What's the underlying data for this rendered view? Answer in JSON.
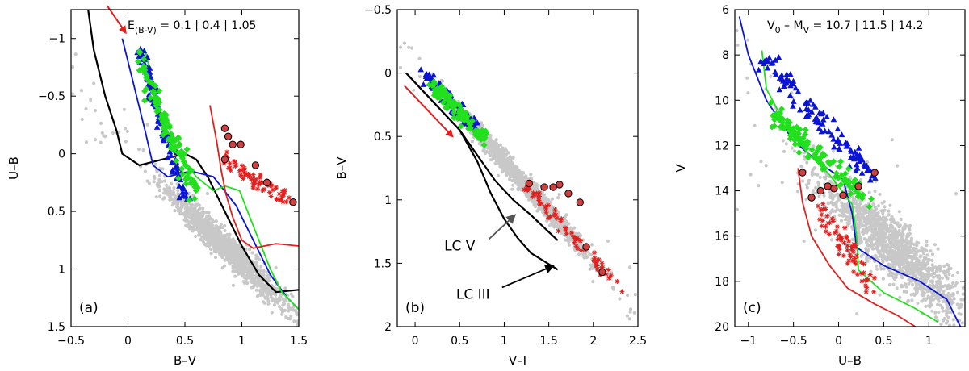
{
  "chart_data": [
    {
      "type": "scatter",
      "panel_label": "(a)",
      "xlabel": "B–V",
      "ylabel": "U–B",
      "xlim": [
        -0.5,
        1.5
      ],
      "ylim": [
        1.5,
        -1.25
      ],
      "xticks": [
        -0.5,
        0,
        0.5,
        1,
        1.5
      ],
      "xtick_labels": [
        "−0.5",
        "0",
        "0.5",
        "1",
        "1.5"
      ],
      "yticks": [
        -1,
        -0.5,
        0,
        0.5,
        1,
        1.5
      ],
      "ytick_labels": [
        "−1",
        "−0.5",
        "0",
        "0.5",
        "1",
        "1.5"
      ],
      "annotation": {
        "prefix": "E",
        "sub": "(B-V)",
        "text": " = 0.1 | 0.4 | 1.05"
      },
      "field": {
        "color": "#c8c8c8",
        "center": [
          0.85,
          0.8
        ],
        "slope": 0.95,
        "spread": 0.12
      },
      "groups": [
        {
          "name": "blue-triangles",
          "marker": "triangle",
          "color": "#0a14d2",
          "x_range": [
            0.1,
            0.55
          ],
          "line": [
            [
              0.1,
              -0.9
            ],
            [
              0.5,
              0.35
            ]
          ],
          "spread": 0.08
        },
        {
          "name": "green-diamonds",
          "marker": "diamond",
          "color": "#22e01e",
          "x_range": [
            0.1,
            0.65
          ],
          "line": [
            [
              0.1,
              -0.8
            ],
            [
              0.6,
              0.35
            ]
          ],
          "spread": 0.1
        },
        {
          "name": "red-crosses",
          "marker": "cross",
          "color": "#e0201e",
          "x_range": [
            0.85,
            1.45
          ],
          "line": [
            [
              0.85,
              0.05
            ],
            [
              1.4,
              0.4
            ]
          ],
          "spread": 0.07
        },
        {
          "name": "black-circles",
          "marker": "circle",
          "color": "#d04040",
          "points": [
            [
              0.85,
              -0.22
            ],
            [
              0.88,
              -0.15
            ],
            [
              0.92,
              -0.08
            ],
            [
              0.99,
              -0.08
            ],
            [
              0.85,
              0.05
            ],
            [
              1.12,
              0.1
            ],
            [
              1.22,
              0.25
            ],
            [
              1.45,
              0.42
            ]
          ]
        }
      ],
      "lines": [
        {
          "name": "black-sequence",
          "color": "#000000",
          "points": [
            [
              -0.35,
              -1.25
            ],
            [
              -0.3,
              -0.9
            ],
            [
              -0.2,
              -0.5
            ],
            [
              -0.1,
              -0.2
            ],
            [
              -0.05,
              0.0
            ],
            [
              0.1,
              0.1
            ],
            [
              0.3,
              0.05
            ],
            [
              0.5,
              0.0
            ],
            [
              0.6,
              0.05
            ],
            [
              0.7,
              0.2
            ],
            [
              0.85,
              0.5
            ],
            [
              1.0,
              0.8
            ],
            [
              1.15,
              1.05
            ],
            [
              1.3,
              1.2
            ],
            [
              1.5,
              1.18
            ]
          ]
        },
        {
          "name": "blue-sequence",
          "color": "#0a14d2",
          "points": [
            [
              -0.05,
              -1.0
            ],
            [
              0.05,
              -0.6
            ],
            [
              0.15,
              -0.2
            ],
            [
              0.22,
              0.1
            ],
            [
              0.35,
              0.2
            ],
            [
              0.55,
              0.15
            ],
            [
              0.75,
              0.2
            ],
            [
              0.95,
              0.45
            ],
            [
              1.1,
              0.75
            ],
            [
              1.25,
              1.05
            ],
            [
              1.4,
              1.25
            ],
            [
              1.5,
              1.35
            ]
          ]
        },
        {
          "name": "green-sequence",
          "color": "#22e01e",
          "points": [
            [
              0.15,
              -0.9
            ],
            [
              0.22,
              -0.6
            ],
            [
              0.32,
              -0.25
            ],
            [
              0.45,
              0.0
            ],
            [
              0.6,
              0.2
            ],
            [
              0.75,
              0.32
            ],
            [
              0.85,
              0.28
            ],
            [
              0.98,
              0.32
            ],
            [
              1.05,
              0.5
            ],
            [
              1.15,
              0.75
            ],
            [
              1.25,
              1.0
            ],
            [
              1.35,
              1.2
            ],
            [
              1.5,
              1.35
            ]
          ]
        },
        {
          "name": "red-sequence",
          "color": "#e0201e",
          "points": [
            [
              0.72,
              -0.42
            ],
            [
              0.78,
              -0.1
            ],
            [
              0.82,
              0.15
            ],
            [
              0.86,
              0.35
            ],
            [
              0.92,
              0.55
            ],
            [
              1.0,
              0.75
            ],
            [
              1.1,
              0.82
            ],
            [
              1.3,
              0.78
            ],
            [
              1.5,
              0.8
            ]
          ]
        }
      ],
      "arrow": {
        "color": "#e0201e",
        "from": [
          -0.18,
          -1.28
        ],
        "to": [
          -0.02,
          -1.05
        ]
      }
    },
    {
      "type": "scatter",
      "panel_label": "(b)",
      "xlabel": "V–I",
      "ylabel": "B–V",
      "xlim": [
        -0.2,
        2.5
      ],
      "ylim": [
        2.0,
        -0.5
      ],
      "xticks": [
        0,
        0.5,
        1,
        1.5,
        2,
        2.5
      ],
      "xtick_labels": [
        "0",
        "0.5",
        "1",
        "1.5",
        "2",
        "2.5"
      ],
      "yticks": [
        -0.5,
        0,
        0.5,
        1,
        1.5,
        2
      ],
      "ytick_labels": [
        "−0.5",
        "0",
        "0.5",
        "1",
        "1.5",
        "2"
      ],
      "field": {
        "color": "#c8c8c8",
        "center": [
          1.2,
          0.85
        ],
        "slope": 0.78,
        "spread": 0.08
      },
      "groups": [
        {
          "name": "blue-triangles",
          "marker": "triangle",
          "color": "#0a14d2",
          "x_range": [
            0.1,
            0.7
          ],
          "line": [
            [
              0.1,
              0.0
            ],
            [
              0.7,
              0.45
            ]
          ],
          "spread": 0.05
        },
        {
          "name": "green-diamonds",
          "marker": "diamond",
          "color": "#22e01e",
          "x_range": [
            0.2,
            0.85
          ],
          "line": [
            [
              0.2,
              0.1
            ],
            [
              0.8,
              0.55
            ]
          ],
          "spread": 0.06
        },
        {
          "name": "red-crosses",
          "marker": "cross",
          "color": "#e0201e",
          "x_range": [
            1.2,
            2.3
          ],
          "line": [
            [
              1.2,
              0.85
            ],
            [
              2.3,
              1.7
            ]
          ],
          "spread": 0.05
        },
        {
          "name": "black-circles",
          "marker": "circle",
          "color": "#d04040",
          "points": [
            [
              1.28,
              0.87
            ],
            [
              1.45,
              0.9
            ],
            [
              1.55,
              0.9
            ],
            [
              1.62,
              0.88
            ],
            [
              1.72,
              0.95
            ],
            [
              1.85,
              1.02
            ],
            [
              1.92,
              1.37
            ],
            [
              2.1,
              1.57
            ]
          ]
        }
      ],
      "lines": [
        {
          "name": "lc-v-sequence",
          "color": "#000000",
          "points": [
            [
              -0.1,
              0.0
            ],
            [
              0.1,
              0.15
            ],
            [
              0.3,
              0.3
            ],
            [
              0.5,
              0.45
            ],
            [
              0.7,
              0.65
            ],
            [
              0.9,
              0.85
            ],
            [
              1.1,
              1.0
            ],
            [
              1.3,
              1.12
            ],
            [
              1.45,
              1.22
            ],
            [
              1.6,
              1.32
            ]
          ]
        },
        {
          "name": "lc-iii-sequence",
          "color": "#000000",
          "points": [
            [
              -0.1,
              0.0
            ],
            [
              0.1,
              0.15
            ],
            [
              0.3,
              0.3
            ],
            [
              0.5,
              0.45
            ],
            [
              0.7,
              0.7
            ],
            [
              0.85,
              0.95
            ],
            [
              1.0,
              1.15
            ],
            [
              1.15,
              1.3
            ],
            [
              1.3,
              1.42
            ],
            [
              1.6,
              1.55
            ]
          ]
        }
      ],
      "arrow": {
        "color": "#e0201e",
        "from": [
          -0.12,
          0.1
        ],
        "to": [
          0.42,
          0.5
        ]
      },
      "labels": [
        {
          "text": "LC V",
          "at": [
            0.5,
            1.4
          ],
          "arrow_to": [
            1.12,
            1.12
          ],
          "arrow_color": "#555555"
        },
        {
          "text": "LC III",
          "at": [
            0.65,
            1.78
          ],
          "arrow_to": [
            1.55,
            1.52
          ],
          "arrow_color": "#000000"
        }
      ]
    },
    {
      "type": "scatter",
      "panel_label": "(c)",
      "xlabel": "U–B",
      "ylabel": "V",
      "xlim": [
        -1.15,
        1.4
      ],
      "ylim": [
        20,
        6
      ],
      "xticks": [
        -1,
        -0.5,
        0,
        0.5,
        1
      ],
      "xtick_labels": [
        "−1",
        "−0.5",
        "0",
        "0.5",
        "1"
      ],
      "yticks": [
        6,
        8,
        10,
        12,
        14,
        16,
        18,
        20
      ],
      "ytick_labels": [
        "6",
        "8",
        "10",
        "12",
        "14",
        "16",
        "18",
        "20"
      ],
      "annotation": {
        "prefix": "V",
        "sub": "0",
        "text": " – M",
        "sub2": "V",
        "text2": " = 10.7 | 11.5 | 14.2"
      },
      "field": {
        "color": "#c8c8c8",
        "center": [
          0.6,
          16.5
        ],
        "slope": 3.5,
        "spread": 1.3
      },
      "groups": [
        {
          "name": "blue-triangles",
          "marker": "triangle",
          "color": "#0a14d2",
          "x_range": [
            -0.85,
            0.4
          ],
          "line": [
            [
              -0.85,
              8.0
            ],
            [
              0.4,
              13.5
            ]
          ],
          "spread": 0.6
        },
        {
          "name": "green-diamonds",
          "marker": "diamond",
          "color": "#22e01e",
          "x_range": [
            -0.85,
            0.35
          ],
          "line": [
            [
              -0.75,
              10.5
            ],
            [
              0.35,
              14.5
            ]
          ],
          "spread": 0.5
        },
        {
          "name": "red-crosses",
          "marker": "cross",
          "color": "#e0201e",
          "x_range": [
            -0.3,
            0.35
          ],
          "line": [
            [
              -0.2,
              15.0
            ],
            [
              0.35,
              18.0
            ]
          ],
          "spread": 0.7
        },
        {
          "name": "black-circles",
          "marker": "circle",
          "color": "#d04040",
          "points": [
            [
              -0.4,
              13.2
            ],
            [
              -0.3,
              14.3
            ],
            [
              -0.2,
              14.0
            ],
            [
              -0.12,
              13.8
            ],
            [
              -0.05,
              13.9
            ],
            [
              0.05,
              14.2
            ],
            [
              0.22,
              13.8
            ],
            [
              0.4,
              13.2
            ]
          ]
        }
      ],
      "lines": [
        {
          "name": "blue-sequence",
          "color": "#0a14d2",
          "points": [
            [
              -1.1,
              6.3
            ],
            [
              -1.0,
              8.0
            ],
            [
              -0.8,
              10.0
            ],
            [
              -0.5,
              11.8
            ],
            [
              -0.2,
              12.8
            ],
            [
              0.05,
              13.5
            ],
            [
              0.15,
              15.0
            ],
            [
              0.2,
              16.5
            ],
            [
              0.5,
              17.3
            ],
            [
              0.9,
              18.0
            ],
            [
              1.2,
              18.8
            ],
            [
              1.35,
              20.0
            ]
          ]
        },
        {
          "name": "green-sequence",
          "color": "#22e01e",
          "points": [
            [
              -0.85,
              7.8
            ],
            [
              -0.8,
              9.5
            ],
            [
              -0.6,
              11.0
            ],
            [
              -0.35,
              12.3
            ],
            [
              -0.1,
              13.3
            ],
            [
              0.15,
              14.6
            ],
            [
              0.2,
              16.0
            ],
            [
              0.22,
              17.5
            ],
            [
              0.5,
              18.5
            ],
            [
              0.85,
              19.2
            ],
            [
              1.1,
              19.8
            ]
          ]
        },
        {
          "name": "red-sequence",
          "color": "#e0201e",
          "points": [
            [
              -0.45,
              13.0
            ],
            [
              -0.4,
              14.5
            ],
            [
              -0.3,
              16.0
            ],
            [
              -0.1,
              17.3
            ],
            [
              0.1,
              18.3
            ],
            [
              0.4,
              19.0
            ],
            [
              0.65,
              19.5
            ],
            [
              0.85,
              20.0
            ]
          ]
        }
      ]
    }
  ]
}
